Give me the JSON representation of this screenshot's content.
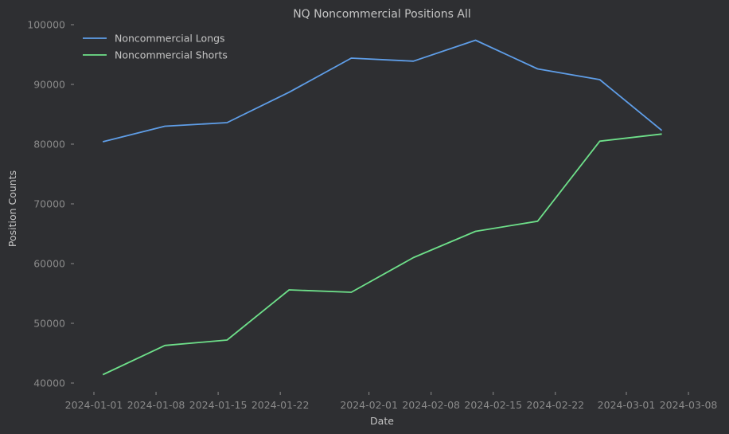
{
  "chart_data": {
    "type": "line",
    "title": "NQ Noncommercial Positions All",
    "xlabel": "Date",
    "ylabel": "Position Counts",
    "ylim": [
      39000,
      101000
    ],
    "grid": false,
    "legend_position": "upper left",
    "x": [
      "2024-01-02",
      "2024-01-09",
      "2024-01-16",
      "2024-01-23",
      "2024-01-30",
      "2024-02-06",
      "2024-02-13",
      "2024-02-20",
      "2024-02-27",
      "2024-03-05"
    ],
    "series": [
      {
        "name": "Noncommercial Longs",
        "color": "#5f9ee8",
        "values": [
          80400,
          83000,
          83600,
          88700,
          94400,
          93900,
          97400,
          92600,
          90800,
          82300
        ]
      },
      {
        "name": "Noncommercial Shorts",
        "color": "#6ee08a",
        "values": [
          41400,
          46300,
          47200,
          55600,
          55200,
          61000,
          65400,
          67100,
          80500,
          81700
        ]
      }
    ],
    "x_ticks": [
      "2024-01-01",
      "2024-01-08",
      "2024-01-15",
      "2024-01-22",
      "2024-02-01",
      "2024-02-08",
      "2024-02-15",
      "2024-02-22",
      "2024-03-01",
      "2024-03-08"
    ],
    "y_ticks": [
      40000,
      50000,
      60000,
      70000,
      80000,
      90000,
      100000
    ]
  }
}
